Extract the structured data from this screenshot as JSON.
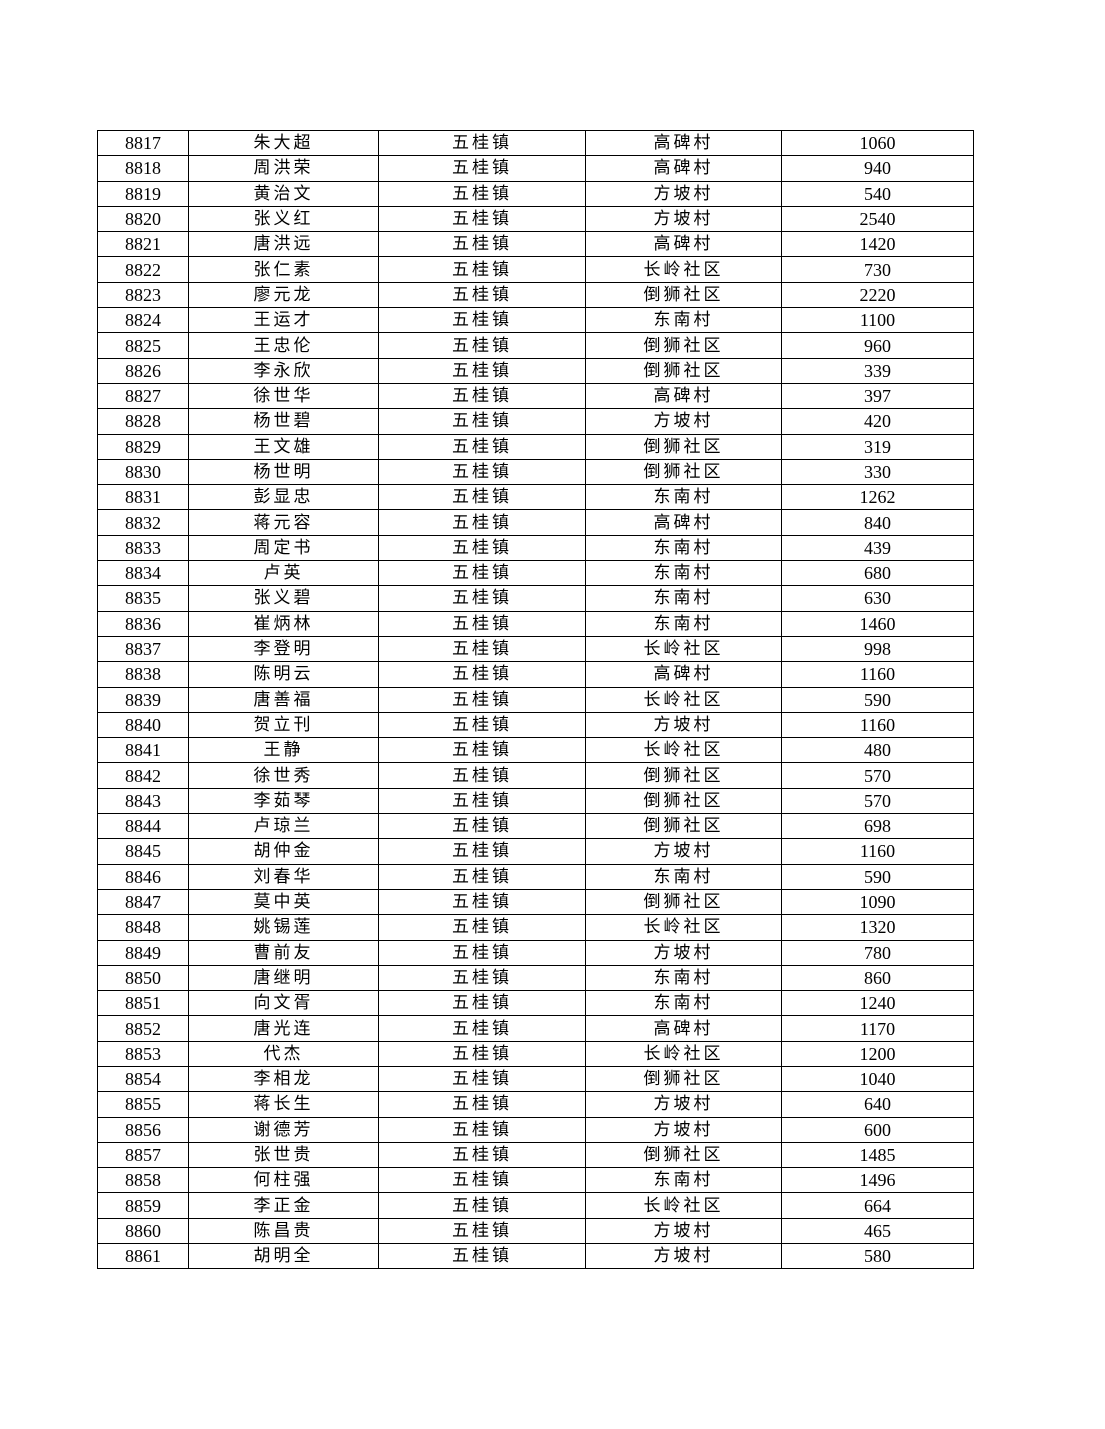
{
  "table": {
    "rows": [
      [
        "8817",
        "朱大超",
        "五桂镇",
        "高碑村",
        "1060"
      ],
      [
        "8818",
        "周洪荣",
        "五桂镇",
        "高碑村",
        "940"
      ],
      [
        "8819",
        "黄治文",
        "五桂镇",
        "方坡村",
        "540"
      ],
      [
        "8820",
        "张义红",
        "五桂镇",
        "方坡村",
        "2540"
      ],
      [
        "8821",
        "唐洪远",
        "五桂镇",
        "高碑村",
        "1420"
      ],
      [
        "8822",
        "张仁素",
        "五桂镇",
        "长岭社区",
        "730"
      ],
      [
        "8823",
        "廖元龙",
        "五桂镇",
        "倒狮社区",
        "2220"
      ],
      [
        "8824",
        "王运才",
        "五桂镇",
        "东南村",
        "1100"
      ],
      [
        "8825",
        "王忠伦",
        "五桂镇",
        "倒狮社区",
        "960"
      ],
      [
        "8826",
        "李永欣",
        "五桂镇",
        "倒狮社区",
        "339"
      ],
      [
        "8827",
        "徐世华",
        "五桂镇",
        "高碑村",
        "397"
      ],
      [
        "8828",
        "杨世碧",
        "五桂镇",
        "方坡村",
        "420"
      ],
      [
        "8829",
        "王文雄",
        "五桂镇",
        "倒狮社区",
        "319"
      ],
      [
        "8830",
        "杨世明",
        "五桂镇",
        "倒狮社区",
        "330"
      ],
      [
        "8831",
        "彭显忠",
        "五桂镇",
        "东南村",
        "1262"
      ],
      [
        "8832",
        "蒋元容",
        "五桂镇",
        "高碑村",
        "840"
      ],
      [
        "8833",
        "周定书",
        "五桂镇",
        "东南村",
        "439"
      ],
      [
        "8834",
        "卢英",
        "五桂镇",
        "东南村",
        "680"
      ],
      [
        "8835",
        "张义碧",
        "五桂镇",
        "东南村",
        "630"
      ],
      [
        "8836",
        "崔炳林",
        "五桂镇",
        "东南村",
        "1460"
      ],
      [
        "8837",
        "李登明",
        "五桂镇",
        "长岭社区",
        "998"
      ],
      [
        "8838",
        "陈明云",
        "五桂镇",
        "高碑村",
        "1160"
      ],
      [
        "8839",
        "唐善福",
        "五桂镇",
        "长岭社区",
        "590"
      ],
      [
        "8840",
        "贺立刊",
        "五桂镇",
        "方坡村",
        "1160"
      ],
      [
        "8841",
        "王静",
        "五桂镇",
        "长岭社区",
        "480"
      ],
      [
        "8842",
        "徐世秀",
        "五桂镇",
        "倒狮社区",
        "570"
      ],
      [
        "8843",
        "李茹琴",
        "五桂镇",
        "倒狮社区",
        "570"
      ],
      [
        "8844",
        "卢琼兰",
        "五桂镇",
        "倒狮社区",
        "698"
      ],
      [
        "8845",
        "胡仲金",
        "五桂镇",
        "方坡村",
        "1160"
      ],
      [
        "8846",
        "刘春华",
        "五桂镇",
        "东南村",
        "590"
      ],
      [
        "8847",
        "莫中英",
        "五桂镇",
        "倒狮社区",
        "1090"
      ],
      [
        "8848",
        "姚锡莲",
        "五桂镇",
        "长岭社区",
        "1320"
      ],
      [
        "8849",
        "曹前友",
        "五桂镇",
        "方坡村",
        "780"
      ],
      [
        "8850",
        "唐继明",
        "五桂镇",
        "东南村",
        "860"
      ],
      [
        "8851",
        "向文胥",
        "五桂镇",
        "东南村",
        "1240"
      ],
      [
        "8852",
        "唐光连",
        "五桂镇",
        "高碑村",
        "1170"
      ],
      [
        "8853",
        "代杰",
        "五桂镇",
        "长岭社区",
        "1200"
      ],
      [
        "8854",
        "李相龙",
        "五桂镇",
        "倒狮社区",
        "1040"
      ],
      [
        "8855",
        "蒋长生",
        "五桂镇",
        "方坡村",
        "640"
      ],
      [
        "8856",
        "谢德芳",
        "五桂镇",
        "方坡村",
        "600"
      ],
      [
        "8857",
        "张世贵",
        "五桂镇",
        "倒狮社区",
        "1485"
      ],
      [
        "8858",
        "何柱强",
        "五桂镇",
        "东南村",
        "1496"
      ],
      [
        "8859",
        "李正金",
        "五桂镇",
        "长岭社区",
        "664"
      ],
      [
        "8860",
        "陈昌贵",
        "五桂镇",
        "方坡村",
        "465"
      ],
      [
        "8861",
        "胡明全",
        "五桂镇",
        "方坡村",
        "580"
      ]
    ]
  }
}
